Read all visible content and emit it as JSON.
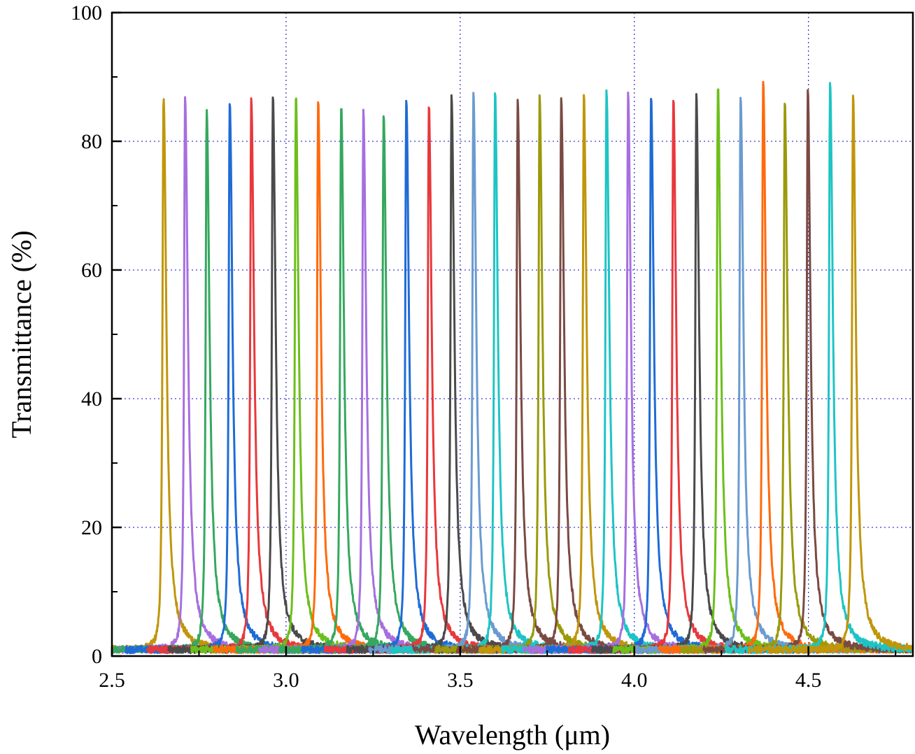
{
  "chart_data": {
    "type": "line",
    "xlabel": "Wavelength (μm)",
    "ylabel": "Transmittance (%)",
    "xlim": [
      2.5,
      4.8
    ],
    "ylim": [
      0,
      100
    ],
    "x_ticks": [
      2.5,
      3.0,
      3.5,
      4.0,
      4.5
    ],
    "x_tick_labels": [
      "2.5",
      "3.0",
      "3.5",
      "4.0",
      "4.5"
    ],
    "y_ticks": [
      0,
      20,
      40,
      60,
      80,
      100
    ],
    "y_tick_labels": [
      "0",
      "20",
      "40",
      "60",
      "80",
      "100"
    ],
    "grid": {
      "x": [
        3.0,
        3.5,
        4.0,
        4.5
      ],
      "y": [
        20,
        40,
        60,
        80
      ],
      "style": "dotted",
      "color": "#3b3bd1"
    },
    "legend": "none",
    "series": [
      {
        "center": 2.648,
        "peak": 86.0,
        "color": "#c0960a"
      },
      {
        "center": 2.71,
        "peak": 85.6,
        "color": "#a66fdf"
      },
      {
        "center": 2.772,
        "peak": 83.8,
        "color": "#35a85e"
      },
      {
        "center": 2.838,
        "peak": 85.2,
        "color": "#1f6bd6"
      },
      {
        "center": 2.9,
        "peak": 85.3,
        "color": "#e8383c"
      },
      {
        "center": 2.962,
        "peak": 85.7,
        "color": "#4a4a4a"
      },
      {
        "center": 3.028,
        "peak": 86.0,
        "color": "#6cbf1a"
      },
      {
        "center": 3.092,
        "peak": 85.0,
        "color": "#ff6a0d"
      },
      {
        "center": 3.158,
        "peak": 84.5,
        "color": "#35a85e"
      },
      {
        "center": 3.222,
        "peak": 83.4,
        "color": "#a66fdf"
      },
      {
        "center": 3.28,
        "peak": 83.3,
        "color": "#35a85e"
      },
      {
        "center": 3.345,
        "peak": 85.5,
        "color": "#1f6bd6"
      },
      {
        "center": 3.41,
        "peak": 84.5,
        "color": "#e8383c"
      },
      {
        "center": 3.475,
        "peak": 85.6,
        "color": "#4a4a4a"
      },
      {
        "center": 3.538,
        "peak": 86.4,
        "color": "#6a9bd0"
      },
      {
        "center": 3.6,
        "peak": 86.4,
        "color": "#1ec4c4"
      },
      {
        "center": 3.665,
        "peak": 85.0,
        "color": "#7a4a42"
      },
      {
        "center": 3.728,
        "peak": 86.0,
        "color": "#9a9a0a"
      },
      {
        "center": 3.79,
        "peak": 85.7,
        "color": "#7a4a42"
      },
      {
        "center": 3.855,
        "peak": 85.9,
        "color": "#c0960a"
      },
      {
        "center": 3.92,
        "peak": 86.9,
        "color": "#1ec4c4"
      },
      {
        "center": 3.982,
        "peak": 86.2,
        "color": "#a66fdf"
      },
      {
        "center": 4.048,
        "peak": 85.8,
        "color": "#1f6bd6"
      },
      {
        "center": 4.112,
        "peak": 85.8,
        "color": "#e8383c"
      },
      {
        "center": 4.178,
        "peak": 85.9,
        "color": "#4a4a4a"
      },
      {
        "center": 4.24,
        "peak": 87.4,
        "color": "#6cbf1a"
      },
      {
        "center": 4.305,
        "peak": 86.0,
        "color": "#6a9bd0"
      },
      {
        "center": 4.37,
        "peak": 88.5,
        "color": "#ff6a0d"
      },
      {
        "center": 4.432,
        "peak": 84.8,
        "color": "#9a9a0a"
      },
      {
        "center": 4.498,
        "peak": 86.5,
        "color": "#7a4a42"
      },
      {
        "center": 4.562,
        "peak": 88.2,
        "color": "#1ec4c4"
      },
      {
        "center": 4.628,
        "peak": 85.6,
        "color": "#c0960a"
      }
    ]
  }
}
